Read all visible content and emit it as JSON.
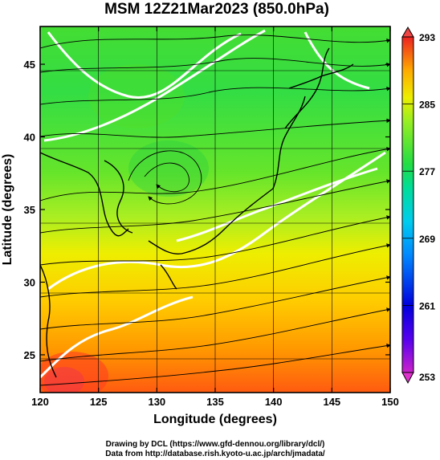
{
  "title": "MSM 12Z21Mar2023 (850.0hPa)",
  "x_axis": {
    "label": "Longitude (degrees)",
    "ticks": [
      120,
      125,
      130,
      135,
      140,
      145,
      150
    ],
    "range": [
      120,
      150
    ]
  },
  "y_axis": {
    "label": "Latitude  (degrees)",
    "ticks": [
      25,
      30,
      35,
      40,
      45
    ],
    "range": [
      22.4,
      47.6
    ]
  },
  "colorbar": {
    "ticks": [
      253,
      261,
      269,
      277,
      285,
      293
    ],
    "range": [
      253,
      293
    ],
    "colors": [
      "#cc22cc",
      "#0000dd",
      "#0099ff",
      "#00ddcc",
      "#22dd55",
      "#99ee22",
      "#eeee00",
      "#ffaa00",
      "#ff5500",
      "#ee2222"
    ]
  },
  "credits": {
    "line1": "Drawing by DCL (https://www.gfd-dennou.org/library/dcl/)",
    "line2": "Data from http://database.rish.kyoto-u.ac.jp/arch/jmadata/"
  },
  "colors": {
    "land_outline": "#000000",
    "contour": "#ffffff",
    "frame": "#000000"
  }
}
